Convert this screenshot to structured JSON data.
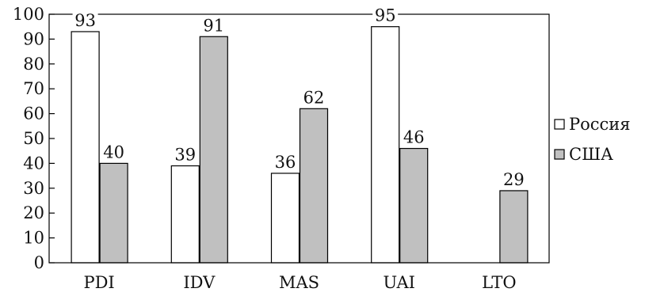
{
  "chart_data": {
    "type": "bar",
    "categories": [
      "PDI",
      "IDV",
      "MAS",
      "UAI",
      "LTO"
    ],
    "series": [
      {
        "name": "Россия",
        "values": [
          93,
          39,
          36,
          95,
          null
        ],
        "color": "#ffffff"
      },
      {
        "name": "США",
        "values": [
          40,
          91,
          62,
          46,
          29
        ],
        "color": "#c0c0c0"
      }
    ],
    "ylim": [
      0,
      100
    ],
    "yticks": [
      "0",
      "10",
      "20",
      "30",
      "40",
      "50",
      "60",
      "70",
      "80",
      "90",
      "100"
    ],
    "title": "",
    "xlabel": "",
    "ylabel": "",
    "grid": false,
    "legend_position": "right"
  }
}
